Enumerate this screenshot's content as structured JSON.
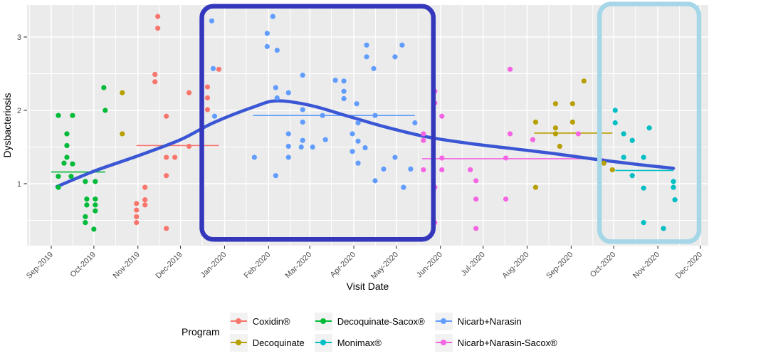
{
  "chart_data": {
    "type": "scatter",
    "title": "",
    "xlabel": "Visit Date",
    "ylabel": "Dysbacteriosis",
    "x_start_date": "2019-09-01",
    "x_tick_labels": [
      "Sep-2019",
      "Oct-2019",
      "Nov-2019",
      "Dec-2019",
      "Jan-2020",
      "Feb-2020",
      "Mar-2020",
      "Apr-2020",
      "May-2020",
      "Jun-2020",
      "Jul-2020",
      "Aug-2020",
      "Sep-2020",
      "Oct-2020",
      "Nov-2020",
      "Dec-2020"
    ],
    "x_tick_dates": [
      "2019-09-01",
      "2019-10-01",
      "2019-11-01",
      "2019-12-01",
      "2020-01-01",
      "2020-02-01",
      "2020-03-01",
      "2020-04-01",
      "2020-05-01",
      "2020-06-01",
      "2020-07-01",
      "2020-08-01",
      "2020-09-01",
      "2020-10-01",
      "2020-11-01",
      "2020-12-01"
    ],
    "y_ticks": [
      1,
      2,
      3
    ],
    "y_minor_ticks": [
      0.5,
      1.5,
      2.5
    ],
    "ylim": [
      0.16,
      3.43
    ],
    "grid": {
      "panel_bg": "#EBEBEB",
      "grid_color": "#FFFFFF"
    },
    "legend": {
      "title": "Program",
      "position": "bottom",
      "columns": [
        [
          {
            "name": "Coxidin®",
            "color": "#F8766D"
          },
          {
            "name": "Decoquinate",
            "color": "#B79F00"
          }
        ],
        [
          {
            "name": "Decoquinate-Sacox®",
            "color": "#00BA38"
          },
          {
            "name": "Monimax®",
            "color": "#00BFC4"
          }
        ],
        [
          {
            "name": "Nicarb+Narasin",
            "color": "#619CFF"
          },
          {
            "name": "Nicarb+Narasin-Sacox®",
            "color": "#F564E3"
          }
        ]
      ]
    },
    "series": [
      {
        "name": "Coxidin®",
        "color": "#F8766D",
        "mean_segment": {
          "from": "2019-10-31",
          "to": "2019-12-28",
          "value": 1.52
        },
        "points": [
          [
            "2019-11-15",
            3.28
          ],
          [
            "2019-11-15",
            3.12
          ],
          [
            "2019-11-13",
            2.49
          ],
          [
            "2019-11-13",
            2.39
          ],
          [
            "2019-12-28",
            2.56
          ],
          [
            "2019-12-20",
            2.32
          ],
          [
            "2019-12-07",
            2.24
          ],
          [
            "2019-12-20",
            2.17
          ],
          [
            "2019-12-20",
            2.01
          ],
          [
            "2019-11-21",
            1.92
          ],
          [
            "2019-12-07",
            1.51
          ],
          [
            "2019-11-21",
            1.36
          ],
          [
            "2019-11-27",
            1.36
          ],
          [
            "2019-11-21",
            1.11
          ],
          [
            "2019-11-06",
            0.95
          ],
          [
            "2019-11-06",
            0.78
          ],
          [
            "2019-10-31",
            0.73
          ],
          [
            "2019-11-06",
            0.71
          ],
          [
            "2019-10-31",
            0.64
          ],
          [
            "2019-10-31",
            0.55
          ],
          [
            "2019-10-31",
            0.47
          ],
          [
            "2019-11-21",
            0.39
          ]
        ]
      },
      {
        "name": "Decoquinate",
        "color": "#B79F00",
        "mean_segment": {
          "from": "2020-08-06",
          "to": "2020-09-30",
          "value": 1.69
        },
        "points": [
          [
            "2019-10-21",
            2.24
          ],
          [
            "2019-10-21",
            1.68
          ],
          [
            "2020-09-10",
            2.4
          ],
          [
            "2020-08-21",
            2.09
          ],
          [
            "2020-09-02",
            2.09
          ],
          [
            "2020-08-07",
            1.84
          ],
          [
            "2020-09-02",
            1.84
          ],
          [
            "2020-08-21",
            1.76
          ],
          [
            "2020-08-21",
            1.68
          ],
          [
            "2020-08-24",
            1.51
          ],
          [
            "2020-09-24",
            1.28
          ],
          [
            "2020-09-30",
            1.19
          ],
          [
            "2020-08-07",
            0.95
          ]
        ]
      },
      {
        "name": "Decoquinate-Sacox®",
        "color": "#00BA38",
        "mean_segment": {
          "from": "2019-09-01",
          "to": "2019-10-09",
          "value": 1.16
        },
        "points": [
          [
            "2019-10-08",
            2.31
          ],
          [
            "2019-10-09",
            2.0
          ],
          [
            "2019-09-06",
            1.93
          ],
          [
            "2019-09-16",
            1.93
          ],
          [
            "2019-09-12",
            1.68
          ],
          [
            "2019-09-12",
            1.52
          ],
          [
            "2019-09-12",
            1.36
          ],
          [
            "2019-09-10",
            1.28
          ],
          [
            "2019-09-16",
            1.27
          ],
          [
            "2019-09-06",
            1.1
          ],
          [
            "2019-09-15",
            1.1
          ],
          [
            "2019-09-25",
            1.03
          ],
          [
            "2019-10-02",
            1.03
          ],
          [
            "2019-09-06",
            0.95
          ],
          [
            "2019-09-26",
            0.79
          ],
          [
            "2019-10-02",
            0.79
          ],
          [
            "2019-09-26",
            0.71
          ],
          [
            "2019-10-02",
            0.71
          ],
          [
            "2019-10-02",
            0.63
          ],
          [
            "2019-09-25",
            0.55
          ],
          [
            "2019-09-25",
            0.47
          ],
          [
            "2019-10-01",
            0.38
          ]
        ]
      },
      {
        "name": "Monimax®",
        "color": "#00BFC4",
        "mean_segment": {
          "from": "2020-10-02",
          "to": "2020-11-12",
          "value": 1.18
        },
        "points": [
          [
            "2020-10-02",
            2.0
          ],
          [
            "2020-10-02",
            1.83
          ],
          [
            "2020-10-26",
            1.76
          ],
          [
            "2020-10-08",
            1.68
          ],
          [
            "2020-10-14",
            1.59
          ],
          [
            "2020-10-08",
            1.36
          ],
          [
            "2020-10-22",
            1.36
          ],
          [
            "2020-10-14",
            1.11
          ],
          [
            "2020-11-12",
            1.03
          ],
          [
            "2020-11-12",
            0.95
          ],
          [
            "2020-10-22",
            0.94
          ],
          [
            "2020-11-13",
            0.78
          ],
          [
            "2020-10-22",
            0.47
          ],
          [
            "2020-11-05",
            0.39
          ]
        ]
      },
      {
        "name": "Nicarb+Narasin",
        "color": "#619CFF",
        "mean_segment": {
          "from": "2020-01-21",
          "to": "2020-05-14",
          "value": 1.93
        },
        "points": [
          [
            "2019-12-23",
            3.22
          ],
          [
            "2020-02-04",
            3.28
          ],
          [
            "2020-01-31",
            3.05
          ],
          [
            "2020-01-31",
            2.87
          ],
          [
            "2020-02-07",
            2.82
          ],
          [
            "2019-12-24",
            2.57
          ],
          [
            "2020-02-25",
            2.48
          ],
          [
            "2020-03-19",
            2.41
          ],
          [
            "2020-03-25",
            2.4
          ],
          [
            "2020-02-06",
            2.31
          ],
          [
            "2020-02-15",
            2.24
          ],
          [
            "2020-02-07",
            2.17
          ],
          [
            "2020-02-25",
            2.01
          ],
          [
            "2020-03-10",
            1.93
          ],
          [
            "2020-02-25",
            1.84
          ],
          [
            "2020-02-15",
            1.68
          ],
          [
            "2020-03-12",
            1.6
          ],
          [
            "2020-02-25",
            1.59
          ],
          [
            "2020-02-15",
            1.51
          ],
          [
            "2020-02-24",
            1.5
          ],
          [
            "2020-03-03",
            1.5
          ],
          [
            "2020-02-15",
            1.36
          ],
          [
            "2020-01-22",
            1.36
          ],
          [
            "2020-02-06",
            1.11
          ],
          [
            "2019-12-25",
            1.92
          ],
          [
            "2020-04-10",
            2.89
          ],
          [
            "2020-05-05",
            2.89
          ],
          [
            "2020-04-10",
            2.73
          ],
          [
            "2020-04-30",
            2.73
          ],
          [
            "2020-04-15",
            2.57
          ],
          [
            "2020-03-25",
            2.26
          ],
          [
            "2020-03-25",
            2.16
          ],
          [
            "2020-04-03",
            2.09
          ],
          [
            "2020-04-16",
            1.93
          ],
          [
            "2020-04-04",
            1.83
          ],
          [
            "2020-05-14",
            1.83
          ],
          [
            "2020-03-31",
            1.68
          ],
          [
            "2020-04-04",
            1.58
          ],
          [
            "2020-04-09",
            1.49
          ],
          [
            "2020-03-31",
            1.44
          ],
          [
            "2020-04-04",
            1.28
          ],
          [
            "2020-04-30",
            1.36
          ],
          [
            "2020-04-22",
            1.2
          ],
          [
            "2020-05-11",
            1.2
          ],
          [
            "2020-04-16",
            1.04
          ],
          [
            "2020-05-06",
            0.95
          ]
        ]
      },
      {
        "name": "Nicarb+Narasin-Sacox®",
        "color": "#F564E3",
        "mean_segment": {
          "from": "2020-05-19",
          "to": "2020-09-24",
          "value": 1.34
        },
        "points": [
          [
            "2020-07-20",
            2.56
          ],
          [
            "2020-05-28",
            2.26
          ],
          [
            "2020-05-28",
            2.1
          ],
          [
            "2020-06-02",
            1.92
          ],
          [
            "2020-05-20",
            1.68
          ],
          [
            "2020-05-20",
            1.59
          ],
          [
            "2020-07-20",
            1.68
          ],
          [
            "2020-08-05",
            1.6
          ],
          [
            "2020-06-02",
            1.35
          ],
          [
            "2020-07-17",
            1.35
          ],
          [
            "2020-05-20",
            1.19
          ],
          [
            "2020-06-02",
            1.19
          ],
          [
            "2020-06-22",
            1.19
          ],
          [
            "2020-06-26",
            1.04
          ],
          [
            "2020-05-28",
            0.95
          ],
          [
            "2020-06-26",
            0.79
          ],
          [
            "2020-07-17",
            0.79
          ],
          [
            "2020-05-28",
            0.47
          ],
          [
            "2020-06-26",
            0.39
          ],
          [
            "2020-09-06",
            1.68
          ]
        ]
      }
    ],
    "trend_line": {
      "name": "loess-smooth",
      "color": "#3A56D4",
      "points": [
        [
          "2019-09-05",
          0.96
        ],
        [
          "2019-10-01",
          1.17
        ],
        [
          "2019-11-01",
          1.38
        ],
        [
          "2019-12-01",
          1.6
        ],
        [
          "2019-12-24",
          1.83
        ],
        [
          "2020-01-22",
          2.05
        ],
        [
          "2020-02-07",
          2.13
        ],
        [
          "2020-03-01",
          2.07
        ],
        [
          "2020-03-28",
          1.92
        ],
        [
          "2020-04-22",
          1.78
        ],
        [
          "2020-05-22",
          1.64
        ],
        [
          "2020-06-21",
          1.55
        ],
        [
          "2020-07-21",
          1.48
        ],
        [
          "2020-08-20",
          1.41
        ],
        [
          "2020-09-19",
          1.33
        ],
        [
          "2020-10-19",
          1.26
        ],
        [
          "2020-11-12",
          1.21
        ]
      ]
    },
    "highlight_boxes": [
      {
        "name": "dark-blue-box",
        "color": "#3437BC",
        "from": "2019-12-16",
        "to": "2020-05-27",
        "v_top": 3.42,
        "v_bottom": 0.24
      },
      {
        "name": "light-blue-box",
        "color": "#A6D7E8",
        "from": "2020-09-21",
        "to": "2020-11-30",
        "v_top": 3.45,
        "v_bottom": 0.21
      }
    ],
    "axis_text_color": "#4D4D4D",
    "axis_title_color": "#000000"
  }
}
